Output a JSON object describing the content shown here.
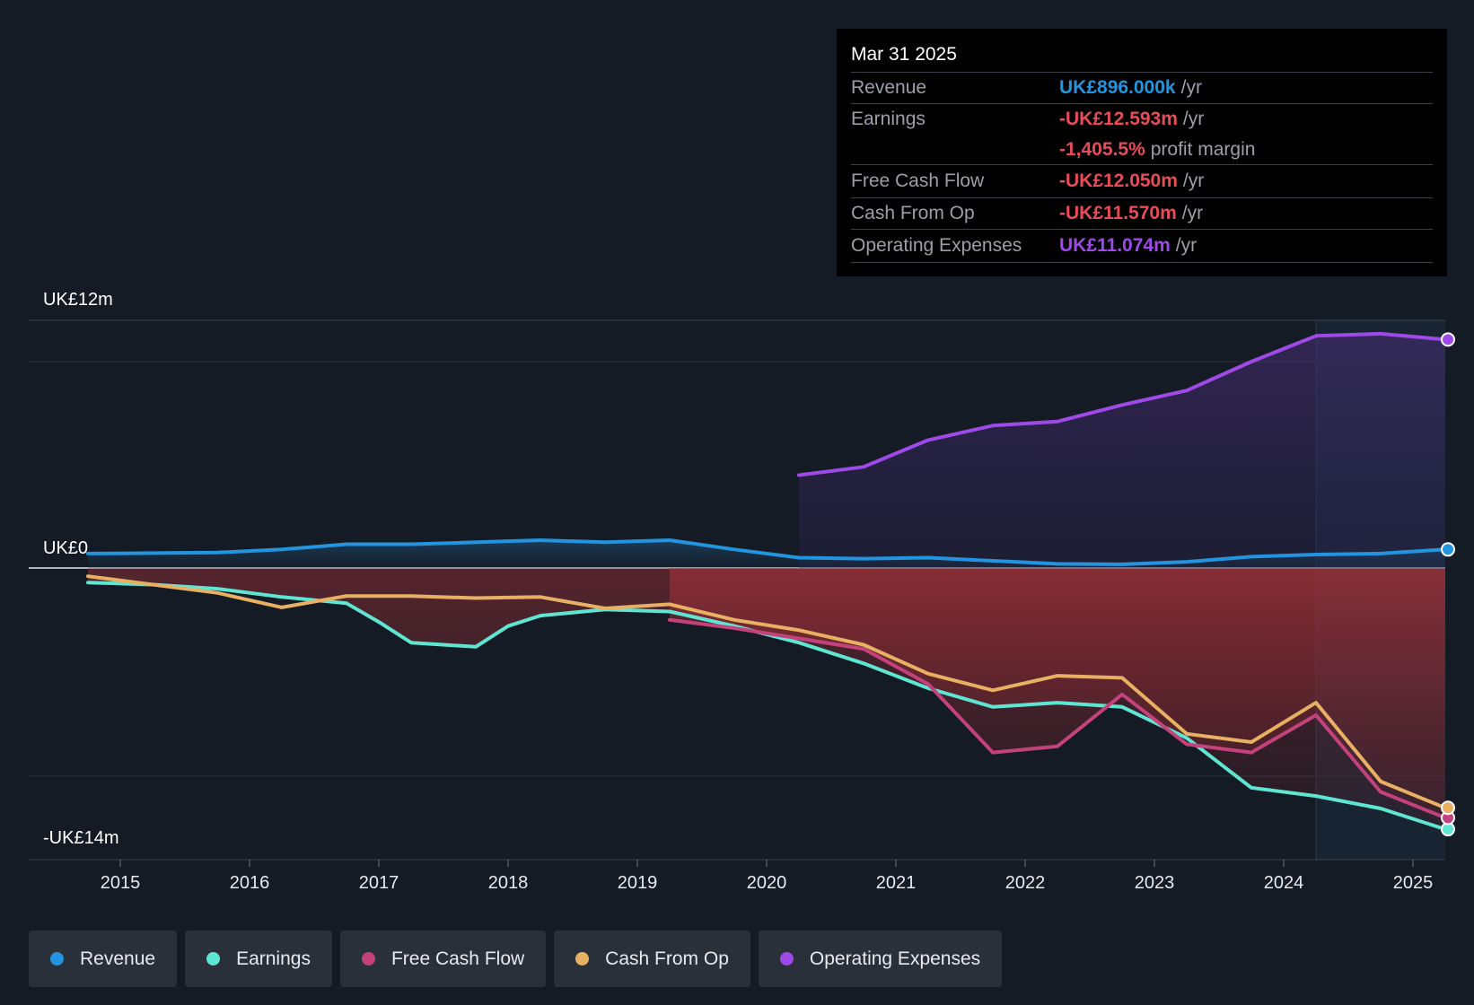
{
  "colors": {
    "revenue": "#2394df",
    "earnings": "#5ee6d3",
    "fcf": "#c4427c",
    "cfo": "#e8b063",
    "opex": "#9f4ae8",
    "negative": "#e84c58"
  },
  "tooltip": {
    "date": "Mar 31 2025",
    "rows": [
      {
        "label": "Revenue",
        "value": "UK£896.000k",
        "unit": "/yr"
      },
      {
        "label": "Earnings",
        "value": "-UK£12.593m",
        "unit": "/yr"
      },
      {
        "label": "",
        "value": "-1,405.5%",
        "unit": "profit margin"
      },
      {
        "label": "Free Cash Flow",
        "value": "-UK£12.050m",
        "unit": "/yr"
      },
      {
        "label": "Cash From Op",
        "value": "-UK£11.570m",
        "unit": "/yr"
      },
      {
        "label": "Operating Expenses",
        "value": "UK£11.074m",
        "unit": "/yr"
      }
    ]
  },
  "legend": [
    "Revenue",
    "Earnings",
    "Free Cash Flow",
    "Cash From Op",
    "Operating Expenses"
  ],
  "chart_data": {
    "type": "line",
    "title": "",
    "y_top_label": "UK£12m",
    "y_zero_label": "UK£0",
    "y_bottom_label": "-UK£14m",
    "ylim": [
      -14,
      12
    ],
    "xlim": [
      2014.7,
      2025.25
    ],
    "x_ticks": [
      "2015",
      "2016",
      "2017",
      "2018",
      "2019",
      "2020",
      "2021",
      "2022",
      "2023",
      "2024",
      "2025"
    ],
    "series": [
      {
        "name": "Revenue",
        "points": [
          [
            2014.75,
            0.7
          ],
          [
            2015.25,
            0.72
          ],
          [
            2015.75,
            0.75
          ],
          [
            2016.25,
            0.9
          ],
          [
            2016.75,
            1.15
          ],
          [
            2017.25,
            1.15
          ],
          [
            2017.75,
            1.25
          ],
          [
            2018.25,
            1.35
          ],
          [
            2018.75,
            1.25
          ],
          [
            2019.25,
            1.35
          ],
          [
            2019.75,
            0.9
          ],
          [
            2020.25,
            0.5
          ],
          [
            2020.75,
            0.45
          ],
          [
            2021.25,
            0.5
          ],
          [
            2021.75,
            0.35
          ],
          [
            2022.25,
            0.2
          ],
          [
            2022.75,
            0.18
          ],
          [
            2023.25,
            0.3
          ],
          [
            2023.75,
            0.55
          ],
          [
            2024.25,
            0.65
          ],
          [
            2024.75,
            0.7
          ],
          [
            2025.25,
            0.9
          ]
        ]
      },
      {
        "name": "Earnings",
        "points": [
          [
            2014.75,
            -0.7
          ],
          [
            2015.25,
            -0.8
          ],
          [
            2015.75,
            -1.0
          ],
          [
            2016.25,
            -1.4
          ],
          [
            2016.75,
            -1.7
          ],
          [
            2017.0,
            -2.6
          ],
          [
            2017.25,
            -3.6
          ],
          [
            2017.75,
            -3.8
          ],
          [
            2018.0,
            -2.8
          ],
          [
            2018.25,
            -2.3
          ],
          [
            2018.75,
            -2.0
          ],
          [
            2019.25,
            -2.1
          ],
          [
            2019.75,
            -2.8
          ],
          [
            2020.25,
            -3.6
          ],
          [
            2020.75,
            -4.6
          ],
          [
            2021.25,
            -5.8
          ],
          [
            2021.75,
            -6.7
          ],
          [
            2022.25,
            -6.5
          ],
          [
            2022.75,
            -6.7
          ],
          [
            2023.25,
            -8.2
          ],
          [
            2023.75,
            -10.6
          ],
          [
            2024.25,
            -11.0
          ],
          [
            2024.75,
            -11.6
          ],
          [
            2025.25,
            -12.6
          ]
        ]
      },
      {
        "name": "Free Cash Flow",
        "points": [
          [
            2019.25,
            -2.5
          ],
          [
            2019.75,
            -2.9
          ],
          [
            2020.25,
            -3.4
          ],
          [
            2020.75,
            -3.9
          ],
          [
            2021.25,
            -5.6
          ],
          [
            2021.75,
            -8.9
          ],
          [
            2022.25,
            -8.6
          ],
          [
            2022.75,
            -6.1
          ],
          [
            2023.25,
            -8.5
          ],
          [
            2023.75,
            -8.9
          ],
          [
            2024.25,
            -7.1
          ],
          [
            2024.75,
            -10.8
          ],
          [
            2025.25,
            -12.05
          ]
        ]
      },
      {
        "name": "Cash From Op",
        "points": [
          [
            2014.75,
            -0.4
          ],
          [
            2015.25,
            -0.8
          ],
          [
            2015.75,
            -1.2
          ],
          [
            2016.25,
            -1.9
          ],
          [
            2016.75,
            -1.35
          ],
          [
            2017.25,
            -1.35
          ],
          [
            2017.75,
            -1.45
          ],
          [
            2018.25,
            -1.4
          ],
          [
            2018.75,
            -1.95
          ],
          [
            2019.25,
            -1.75
          ],
          [
            2019.75,
            -2.5
          ],
          [
            2020.25,
            -3.0
          ],
          [
            2020.75,
            -3.7
          ],
          [
            2021.25,
            -5.1
          ],
          [
            2021.75,
            -5.9
          ],
          [
            2022.25,
            -5.2
          ],
          [
            2022.75,
            -5.3
          ],
          [
            2023.25,
            -8.0
          ],
          [
            2023.75,
            -8.4
          ],
          [
            2024.25,
            -6.5
          ],
          [
            2024.75,
            -10.3
          ],
          [
            2025.25,
            -11.57
          ]
        ]
      },
      {
        "name": "Operating Expenses",
        "points": [
          [
            2020.25,
            4.5
          ],
          [
            2020.75,
            4.9
          ],
          [
            2021.25,
            6.2
          ],
          [
            2021.75,
            6.9
          ],
          [
            2022.25,
            7.1
          ],
          [
            2022.75,
            7.9
          ],
          [
            2023.25,
            8.6
          ],
          [
            2023.75,
            10.0
          ],
          [
            2024.25,
            11.25
          ],
          [
            2024.75,
            11.35
          ],
          [
            2025.25,
            11.07
          ]
        ]
      }
    ]
  }
}
